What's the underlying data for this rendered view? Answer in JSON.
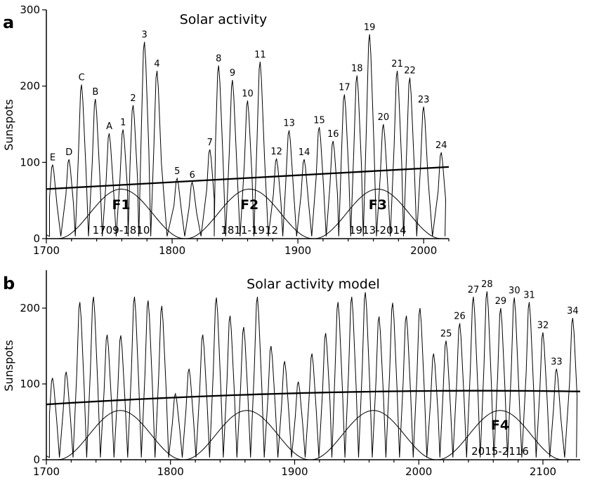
{
  "chart_data": [
    {
      "type": "line",
      "panel": "a",
      "title": "Solar activity",
      "xlabel": "",
      "ylabel": "Sunspots",
      "xlim": [
        1700,
        2020
      ],
      "ylim": [
        0,
        300
      ],
      "xticks": [
        "1700",
        "1800",
        "1900",
        "2000"
      ],
      "yticks": [
        "0",
        "100",
        "200",
        "300"
      ],
      "cycles": [
        {
          "label": "E",
          "x": 1705,
          "y": 97
        },
        {
          "label": "D",
          "x": 1718,
          "y": 104
        },
        {
          "label": "C",
          "x": 1728,
          "y": 202
        },
        {
          "label": "B",
          "x": 1739,
          "y": 183
        },
        {
          "label": "A",
          "x": 1750,
          "y": 138
        },
        {
          "label": "1",
          "x": 1761,
          "y": 143
        },
        {
          "label": "2",
          "x": 1769,
          "y": 175
        },
        {
          "label": "3",
          "x": 1778,
          "y": 258
        },
        {
          "label": "4",
          "x": 1788,
          "y": 220
        },
        {
          "label": "5",
          "x": 1804,
          "y": 79
        },
        {
          "label": "6",
          "x": 1816,
          "y": 74
        },
        {
          "label": "7",
          "x": 1830,
          "y": 117
        },
        {
          "label": "8",
          "x": 1837,
          "y": 227
        },
        {
          "label": "9",
          "x": 1848,
          "y": 208
        },
        {
          "label": "10",
          "x": 1860,
          "y": 181
        },
        {
          "label": "11",
          "x": 1870,
          "y": 232
        },
        {
          "label": "12",
          "x": 1883,
          "y": 105
        },
        {
          "label": "13",
          "x": 1893,
          "y": 142
        },
        {
          "label": "14",
          "x": 1905,
          "y": 104
        },
        {
          "label": "15",
          "x": 1917,
          "y": 146
        },
        {
          "label": "16",
          "x": 1928,
          "y": 128
        },
        {
          "label": "17",
          "x": 1937,
          "y": 189
        },
        {
          "label": "18",
          "x": 1947,
          "y": 214
        },
        {
          "label": "19",
          "x": 1957,
          "y": 268
        },
        {
          "label": "20",
          "x": 1968,
          "y": 150
        },
        {
          "label": "21",
          "x": 1979,
          "y": 220
        },
        {
          "label": "22",
          "x": 1989,
          "y": 211
        },
        {
          "label": "23",
          "x": 2000,
          "y": 173
        },
        {
          "label": "24",
          "x": 2014,
          "y": 113
        }
      ],
      "trend": {
        "start": [
          1700,
          65
        ],
        "end": [
          2020,
          94
        ]
      },
      "families": [
        {
          "name": "F1",
          "range": "1709-1810",
          "start": 1709,
          "end": 1810,
          "amplitude": 65
        },
        {
          "name": "F2",
          "range": "1811-1912",
          "start": 1811,
          "end": 1912,
          "amplitude": 65
        },
        {
          "name": "F3",
          "range": "1913-2014",
          "start": 1913,
          "end": 2014,
          "amplitude": 65
        }
      ]
    },
    {
      "type": "line",
      "panel": "b",
      "title": "Solar activity model",
      "xlabel": "",
      "ylabel": "Sunspots",
      "xlim": [
        1700,
        2130
      ],
      "ylim": [
        0,
        250
      ],
      "xticks": [
        "1700",
        "1800",
        "1900",
        "2000",
        "2100"
      ],
      "yticks": [
        "0",
        "100",
        "200"
      ],
      "peaks": [
        {
          "x": 1705,
          "y": 108
        },
        {
          "x": 1716,
          "y": 116
        },
        {
          "x": 1727,
          "y": 208
        },
        {
          "x": 1738,
          "y": 215
        },
        {
          "x": 1749,
          "y": 165
        },
        {
          "x": 1760,
          "y": 164
        },
        {
          "x": 1771,
          "y": 215
        },
        {
          "x": 1782,
          "y": 210
        },
        {
          "x": 1793,
          "y": 203
        },
        {
          "x": 1804,
          "y": 87
        },
        {
          "x": 1815,
          "y": 120
        },
        {
          "x": 1826,
          "y": 165
        },
        {
          "x": 1837,
          "y": 214
        },
        {
          "x": 1848,
          "y": 190
        },
        {
          "x": 1859,
          "y": 175
        },
        {
          "x": 1870,
          "y": 215
        },
        {
          "x": 1881,
          "y": 150
        },
        {
          "x": 1892,
          "y": 130
        },
        {
          "x": 1903,
          "y": 103
        },
        {
          "x": 1914,
          "y": 140
        },
        {
          "x": 1925,
          "y": 167
        },
        {
          "x": 1935,
          "y": 208
        },
        {
          "x": 1946,
          "y": 215
        },
        {
          "x": 1957,
          "y": 221
        },
        {
          "x": 1968,
          "y": 189
        },
        {
          "x": 1979,
          "y": 207
        },
        {
          "x": 1990,
          "y": 190
        },
        {
          "x": 2001,
          "y": 200
        },
        {
          "x": 2012,
          "y": 140
        }
      ],
      "cycles": [
        {
          "label": "25",
          "x": 2022,
          "y": 157
        },
        {
          "label": "26",
          "x": 2033,
          "y": 180
        },
        {
          "label": "27",
          "x": 2044,
          "y": 215
        },
        {
          "label": "28",
          "x": 2055,
          "y": 222
        },
        {
          "label": "29",
          "x": 2066,
          "y": 200
        },
        {
          "label": "30",
          "x": 2077,
          "y": 214
        },
        {
          "label": "31",
          "x": 2089,
          "y": 208
        },
        {
          "label": "32",
          "x": 2100,
          "y": 168
        },
        {
          "label": "33",
          "x": 2111,
          "y": 120
        },
        {
          "label": "34",
          "x": 2124,
          "y": 187
        }
      ],
      "trend": {
        "type": "quadratic",
        "start": [
          1700,
          73
        ],
        "peak": [
          2050,
          91
        ],
        "end": [
          2130,
          89
        ]
      },
      "families": [
        {
          "name": "",
          "range": "",
          "start": 1709,
          "end": 1810,
          "amplitude": 65
        },
        {
          "name": "",
          "range": "",
          "start": 1811,
          "end": 1912,
          "amplitude": 65
        },
        {
          "name": "",
          "range": "",
          "start": 1913,
          "end": 2014,
          "amplitude": 65
        },
        {
          "name": "F4",
          "range": "2015-2116",
          "start": 2015,
          "end": 2116,
          "amplitude": 65
        }
      ]
    }
  ]
}
